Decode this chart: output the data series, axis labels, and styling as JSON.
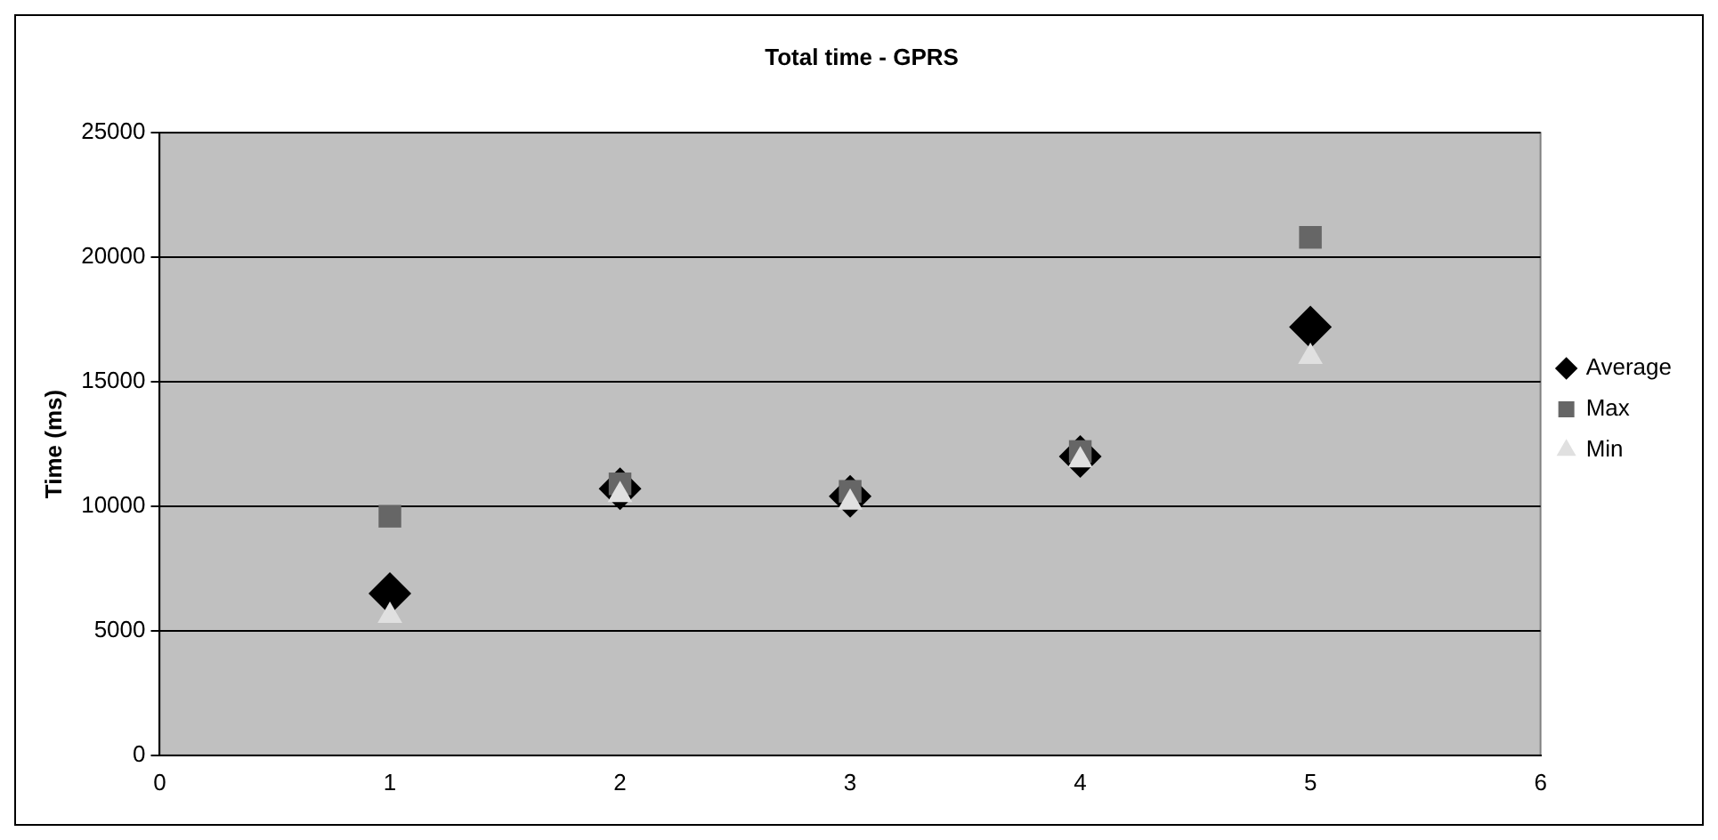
{
  "chart_data": {
    "type": "scatter",
    "title": "Total time - GPRS",
    "ylabel": "Time (ms)",
    "x": [
      1,
      2,
      3,
      4,
      5
    ],
    "series": [
      {
        "name": "Average",
        "color": "#000000",
        "marker": "diamond",
        "values": [
          6500,
          10700,
          10400,
          12000,
          17200
        ]
      },
      {
        "name": "Max",
        "color": "#666666",
        "marker": "square",
        "values": [
          9600,
          10900,
          10600,
          12200,
          20800
        ]
      },
      {
        "name": "Min",
        "color": "#e0e0e0",
        "marker": "triangle",
        "values": [
          5600,
          10450,
          10150,
          11850,
          16000
        ]
      }
    ],
    "xlim": [
      0,
      6
    ],
    "xticks": [
      0,
      1,
      2,
      3,
      4,
      5,
      6
    ],
    "ylim": [
      0,
      25000
    ],
    "yticks": [
      0,
      5000,
      10000,
      15000,
      20000,
      25000
    ],
    "grid": "y",
    "legend": "right"
  }
}
